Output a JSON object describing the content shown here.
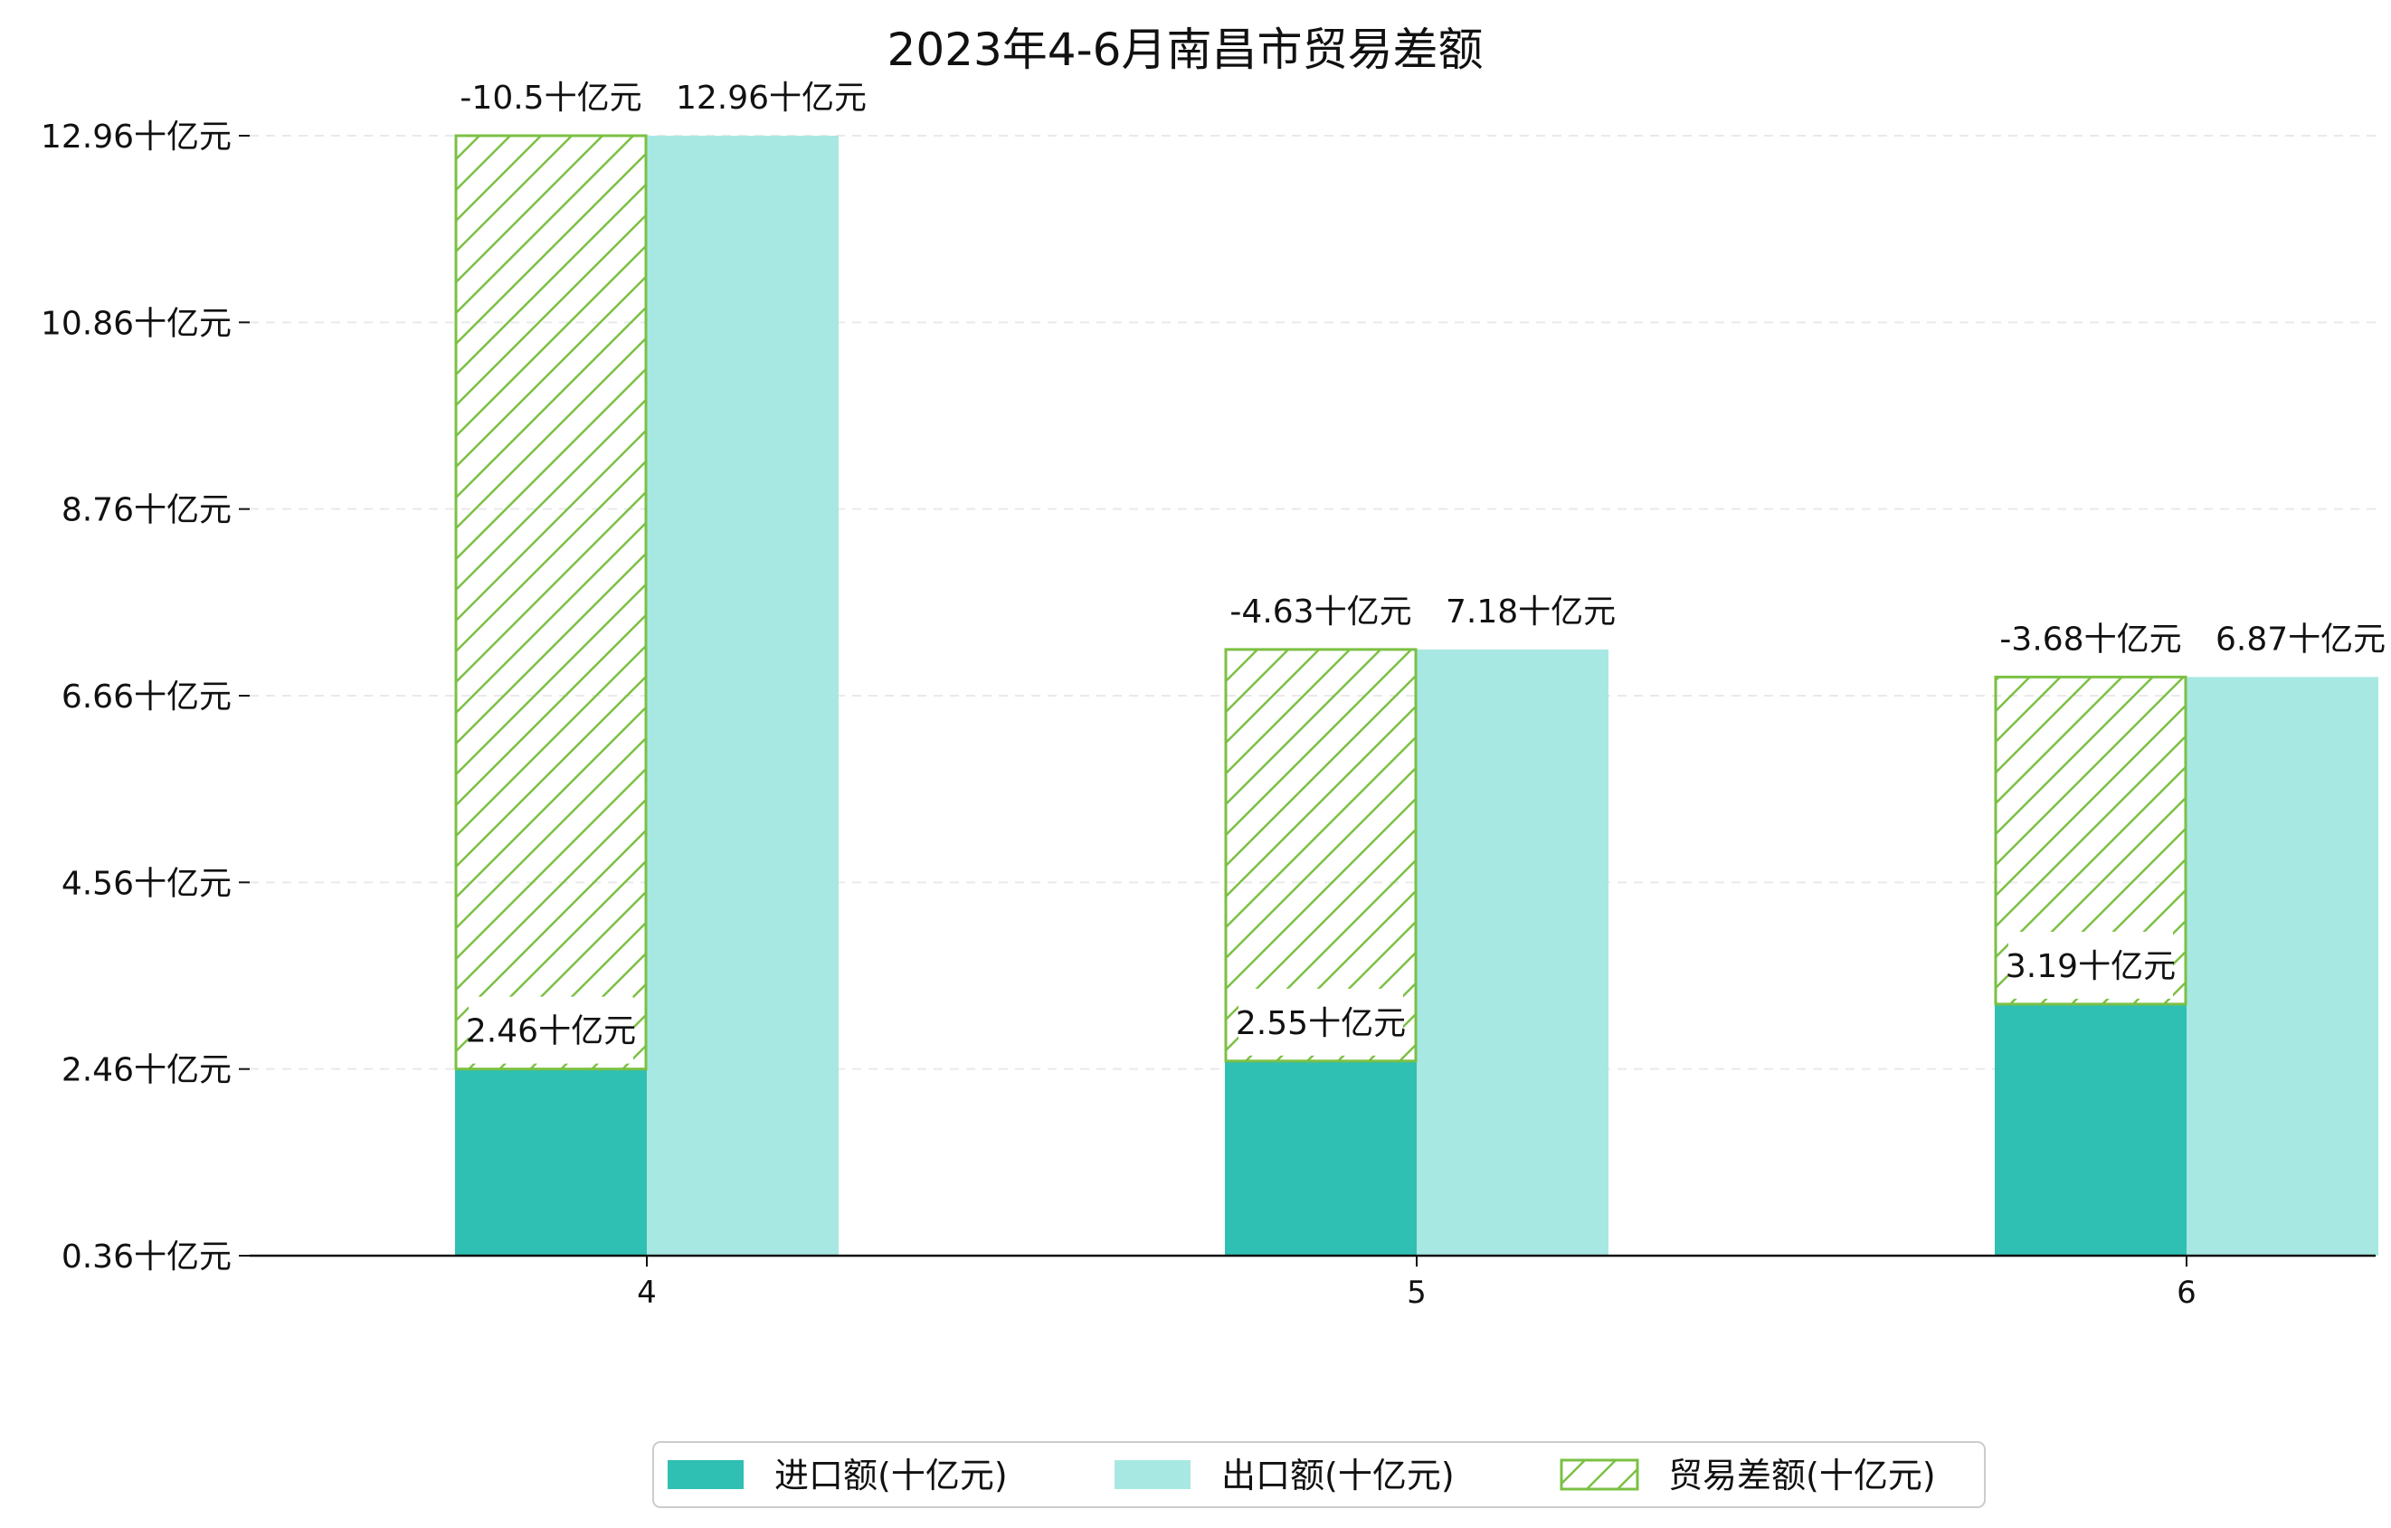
{
  "chart_data": {
    "type": "bar",
    "title": "2023年4-6月南昌市贸易差额",
    "categories": [
      "4",
      "5",
      "6"
    ],
    "yticks": [
      {
        "value": 0.36,
        "label": "0.36十亿元"
      },
      {
        "value": 2.46,
        "label": "2.46十亿元"
      },
      {
        "value": 4.56,
        "label": "4.56十亿元"
      },
      {
        "value": 6.66,
        "label": "6.66十亿元"
      },
      {
        "value": 8.76,
        "label": "8.76十亿元"
      },
      {
        "value": 10.86,
        "label": "10.86十亿元"
      },
      {
        "value": 12.96,
        "label": "12.96十亿元"
      }
    ],
    "ylim": [
      0.36,
      13.3
    ],
    "grid": true,
    "legend_position": "bottom-center",
    "series": [
      {
        "name": "进口额(十亿元)",
        "color": "#30bfb3",
        "values": [
          2.46,
          2.55,
          3.19
        ],
        "labels": [
          "2.46十亿元",
          "2.55十亿元",
          "3.19十亿元"
        ]
      },
      {
        "name": "出口额(十亿元)",
        "color": "#a8e8e3",
        "values": [
          12.96,
          7.18,
          6.87
        ],
        "labels": [
          "12.96十亿元",
          "7.18十亿元",
          "6.87十亿元"
        ]
      },
      {
        "name": "贸易差额(十亿元)",
        "color": "#7bc043",
        "hatch": true,
        "values": [
          -10.5,
          -4.63,
          -3.68
        ],
        "labels": [
          "-10.5十亿元",
          "-4.63十亿元",
          "-3.68十亿元"
        ]
      }
    ]
  }
}
